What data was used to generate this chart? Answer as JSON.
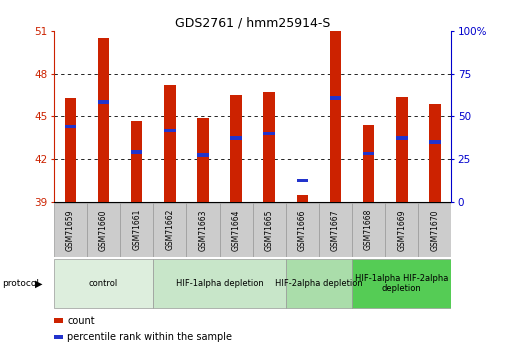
{
  "title": "GDS2761 / hmm25914-S",
  "samples": [
    "GSM71659",
    "GSM71660",
    "GSM71661",
    "GSM71662",
    "GSM71663",
    "GSM71664",
    "GSM71665",
    "GSM71666",
    "GSM71667",
    "GSM71668",
    "GSM71669",
    "GSM71670"
  ],
  "count_values": [
    46.3,
    50.5,
    44.7,
    47.2,
    44.9,
    46.5,
    46.7,
    39.5,
    51.0,
    44.4,
    46.4,
    45.9
  ],
  "percentile_values": [
    44.3,
    46.0,
    42.5,
    44.0,
    42.3,
    43.5,
    43.8,
    40.5,
    46.3,
    42.4,
    43.5,
    43.2
  ],
  "y_min": 39,
  "y_max": 51,
  "y_ticks": [
    39,
    42,
    45,
    48,
    51
  ],
  "y2_ticks": [
    0,
    25,
    50,
    75,
    100
  ],
  "bar_color": "#cc2200",
  "marker_color": "#2233cc",
  "protocol_groups": [
    {
      "label": "control",
      "start": 0,
      "end": 2,
      "color": "#ddeedd"
    },
    {
      "label": "HIF-1alpha depletion",
      "start": 3,
      "end": 6,
      "color": "#c8e6c9"
    },
    {
      "label": "HIF-2alpha depletion",
      "start": 7,
      "end": 8,
      "color": "#aaddaa"
    },
    {
      "label": "HIF-1alpha HIF-2alpha\ndepletion",
      "start": 9,
      "end": 11,
      "color": "#55cc55"
    }
  ],
  "bar_width": 0.35,
  "background_color": "#ffffff"
}
